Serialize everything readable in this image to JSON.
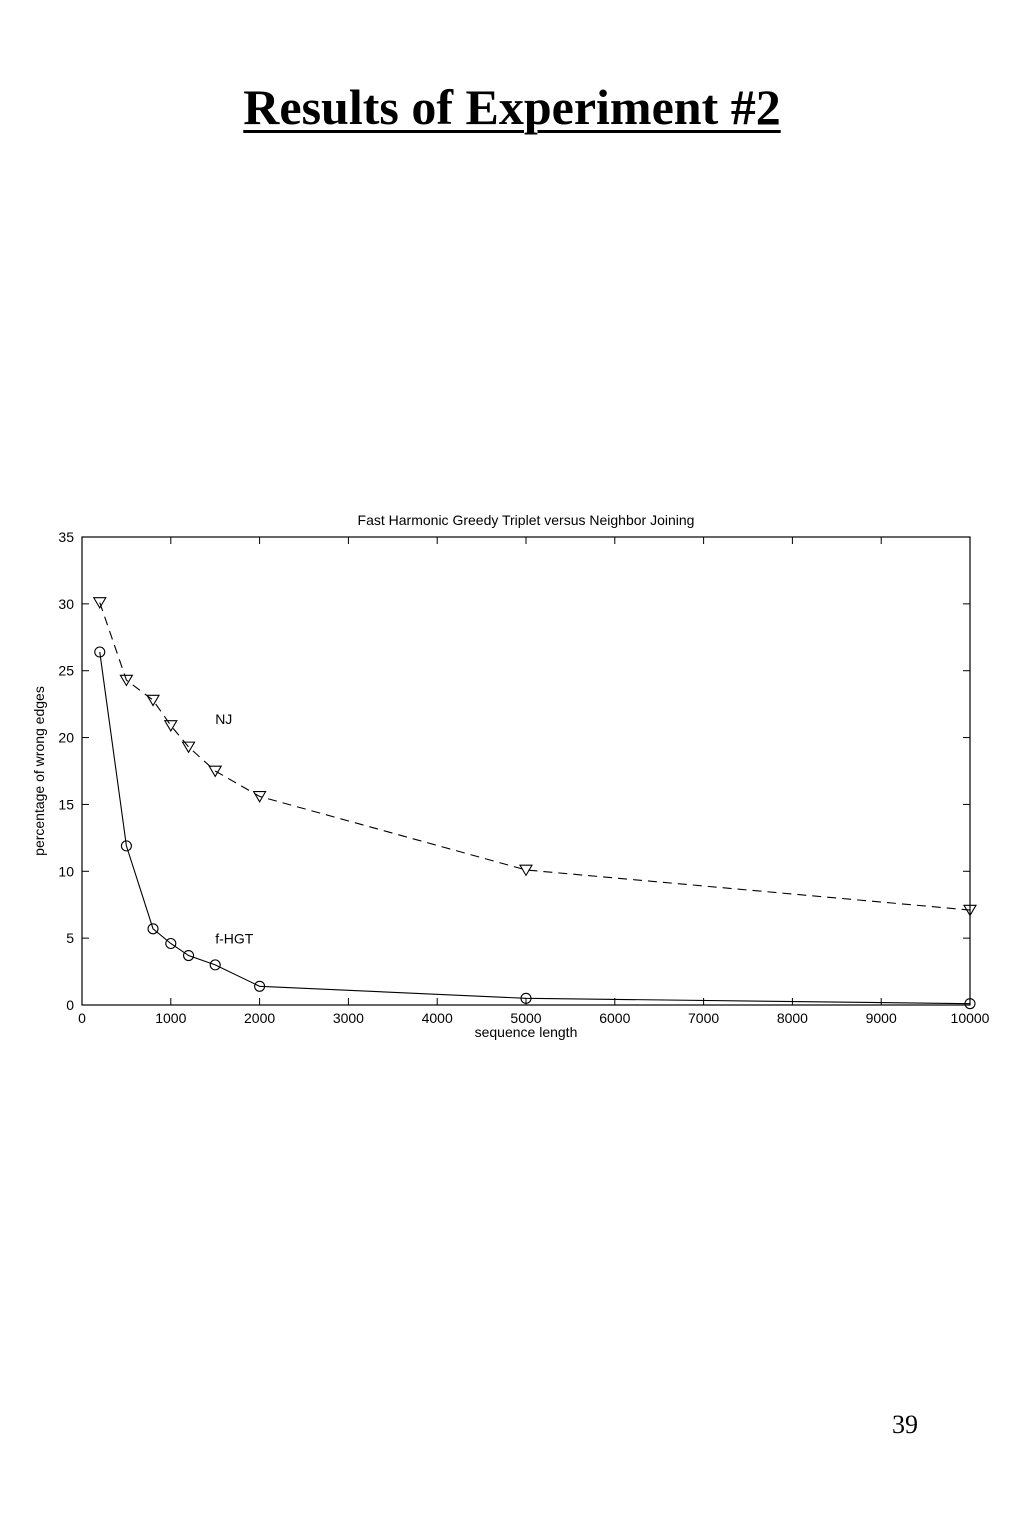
{
  "page": {
    "title": "Results of Experiment #2",
    "page_number": "39"
  },
  "chart_data": {
    "type": "line",
    "title": "Fast Harmonic Greedy Triplet versus Neighbor Joining",
    "xlabel": "sequence length",
    "ylabel": "percentage of wrong edges",
    "xlim": [
      0,
      10000
    ],
    "ylim": [
      0,
      35
    ],
    "xticks": [
      0,
      1000,
      2000,
      3000,
      4000,
      5000,
      6000,
      7000,
      8000,
      9000,
      10000
    ],
    "yticks": [
      0,
      5,
      10,
      15,
      20,
      25,
      30,
      35
    ],
    "grid": false,
    "series": [
      {
        "name": "NJ",
        "line_style": "dashed",
        "marker": "triangle-down",
        "x": [
          200,
          500,
          800,
          1000,
          1200,
          1500,
          2000,
          5000,
          10000
        ],
        "values": [
          30.1,
          24.3,
          22.8,
          20.9,
          19.3,
          17.5,
          15.6,
          10.1,
          7.1
        ]
      },
      {
        "name": "f-HGT",
        "line_style": "solid",
        "marker": "circle",
        "x": [
          200,
          500,
          800,
          1000,
          1200,
          1500,
          2000,
          5000,
          10000
        ],
        "values": [
          26.4,
          11.9,
          5.7,
          4.6,
          3.7,
          3.0,
          1.4,
          0.5,
          0.1
        ]
      }
    ],
    "annotations": [
      {
        "text": "NJ",
        "x": 1500,
        "y": 21
      },
      {
        "text": "f-HGT",
        "x": 1500,
        "y": 4.6
      }
    ]
  }
}
